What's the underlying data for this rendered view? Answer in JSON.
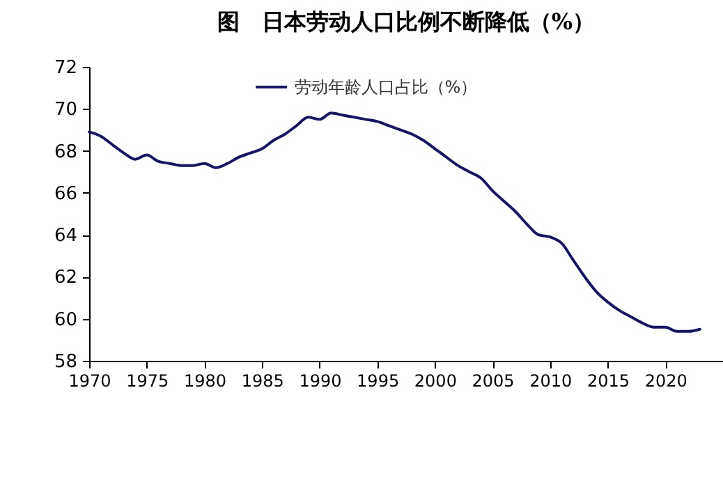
{
  "chart_data": {
    "type": "line",
    "title": "图　日本劳动人口比例不断降低（%）",
    "x": [
      1970,
      1971,
      1972,
      1973,
      1974,
      1975,
      1976,
      1977,
      1978,
      1979,
      1980,
      1981,
      1982,
      1983,
      1984,
      1985,
      1986,
      1987,
      1988,
      1989,
      1990,
      1991,
      1992,
      1993,
      1994,
      1995,
      1996,
      1997,
      1998,
      1999,
      2000,
      2001,
      2002,
      2003,
      2004,
      2005,
      2006,
      2007,
      2008,
      2009,
      2010,
      2011,
      2012,
      2013,
      2014,
      2015,
      2016,
      2017,
      2018,
      2019,
      2020,
      2021,
      2022,
      2023
    ],
    "series": [
      {
        "name": "劳动年龄人口占比（%）",
        "color": "#14146b",
        "values": [
          68.9,
          68.7,
          68.3,
          67.9,
          67.6,
          67.8,
          67.5,
          67.4,
          67.3,
          67.3,
          67.4,
          67.2,
          67.4,
          67.7,
          67.9,
          68.1,
          68.5,
          68.8,
          69.2,
          69.6,
          69.5,
          69.8,
          69.7,
          69.6,
          69.5,
          69.4,
          69.2,
          69.0,
          68.8,
          68.5,
          68.1,
          67.7,
          67.3,
          67.0,
          66.7,
          66.1,
          65.6,
          65.1,
          64.5,
          64.0,
          63.9,
          63.6,
          62.8,
          62.0,
          61.3,
          60.8,
          60.4,
          60.1,
          59.8,
          59.6,
          59.6,
          59.4,
          59.4,
          59.5
        ]
      }
    ],
    "xlim": [
      1970,
      2025
    ],
    "xticks": [
      1970,
      1975,
      1980,
      1985,
      1990,
      1995,
      2000,
      2005,
      2010,
      2015,
      2020
    ],
    "ylim": [
      58,
      72
    ],
    "yticks": [
      58,
      60,
      62,
      64,
      66,
      68,
      70,
      72
    ],
    "legend": "top",
    "grid": false,
    "line_style": "solid"
  }
}
